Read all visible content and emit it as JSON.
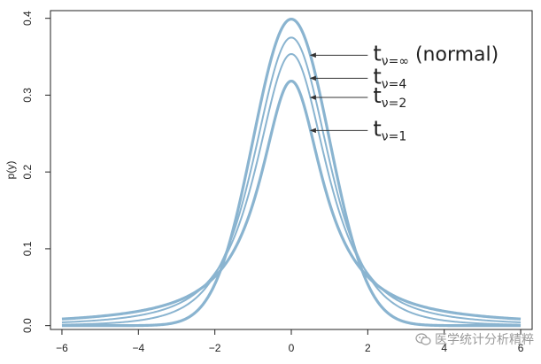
{
  "chart_data": {
    "type": "line",
    "title": "",
    "xlabel": "",
    "ylabel": "p(y)",
    "xlim": [
      -6.3,
      6.3
    ],
    "ylim": [
      -0.005,
      0.41
    ],
    "xticks": [
      -6,
      -4,
      -2,
      0,
      2,
      4,
      6
    ],
    "xtick_labels": [
      "−6",
      "−4",
      "−2",
      "0",
      "2",
      "4",
      "6"
    ],
    "yticks": [
      0.0,
      0.1,
      0.2,
      0.3,
      0.4
    ],
    "ytick_labels": [
      "0.0",
      "0.1",
      "0.2",
      "0.3",
      "0.4"
    ],
    "grid": false,
    "line_color": "#8ab4d0",
    "series": [
      {
        "name_main": "t",
        "name_sub": "ν=∞",
        "name_suffix": " (normal)",
        "df": "inf",
        "label_y": 0.352
      },
      {
        "name_main": "t",
        "name_sub": "ν=4",
        "name_suffix": "",
        "df": 4,
        "label_y": 0.322
      },
      {
        "name_main": "t",
        "name_sub": "ν=2",
        "name_suffix": "",
        "df": 2,
        "label_y": 0.297
      },
      {
        "name_main": "t",
        "name_sub": "ν=1",
        "name_suffix": "",
        "df": 1,
        "label_y": 0.254
      }
    ]
  },
  "watermark": {
    "text": "医学统计分析精粹"
  }
}
